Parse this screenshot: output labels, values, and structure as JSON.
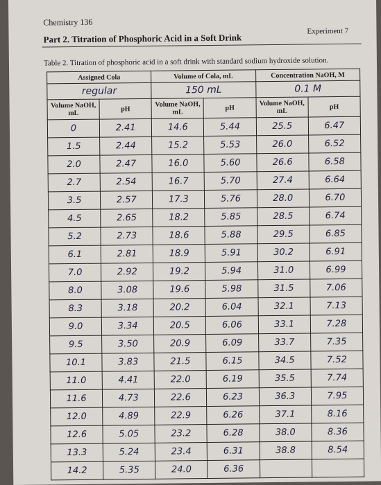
{
  "header": {
    "course": "Chemistry 136",
    "experiment": "Experiment 7",
    "title": "Part 2. Titration of Phosphoric Acid in a Soft Drink"
  },
  "table": {
    "caption": "Table 2. Titration of phosphoric acid in a soft drink with standard sodium hydroxide solution.",
    "headers": [
      "Assigned Cola",
      "Volume of Cola, mL",
      "Concentration NaOH, M"
    ],
    "entries": [
      "regular",
      "150 mL",
      "0.1 M"
    ],
    "subheaders": [
      "Volume NaOH, mL",
      "pH",
      "Volume NaOH, mL",
      "pH",
      "Volume NaOH, mL",
      "pH"
    ],
    "rows": [
      [
        "0",
        "2.41",
        "14.6",
        "5.44",
        "25.5",
        "6.47"
      ],
      [
        "1.5",
        "2.44",
        "15.2",
        "5.53",
        "26.0",
        "6.52"
      ],
      [
        "2.0",
        "2.47",
        "16.0",
        "5.60",
        "26.6",
        "6.58"
      ],
      [
        "2.7",
        "2.54",
        "16.7",
        "5.70",
        "27.4",
        "6.64"
      ],
      [
        "3.5",
        "2.57",
        "17.3",
        "5.76",
        "28.0",
        "6.70"
      ],
      [
        "4.5",
        "2.65",
        "18.2",
        "5.85",
        "28.5",
        "6.74"
      ],
      [
        "5.2",
        "2.73",
        "18.6",
        "5.88",
        "29.5",
        "6.85"
      ],
      [
        "6.1",
        "2.81",
        "18.9",
        "5.91",
        "30.2",
        "6.91"
      ],
      [
        "7.0",
        "2.92",
        "19.2",
        "5.94",
        "31.0",
        "6.99"
      ],
      [
        "8.0",
        "3.08",
        "19.6",
        "5.98",
        "31.5",
        "7.06"
      ],
      [
        "8.3",
        "3.18",
        "20.2",
        "6.04",
        "32.1",
        "7.13"
      ],
      [
        "9.0",
        "3.34",
        "20.5",
        "6.06",
        "33.1",
        "7.28"
      ],
      [
        "9.5",
        "3.50",
        "20.9",
        "6.09",
        "33.7",
        "7.35"
      ],
      [
        "10.1",
        "3.83",
        "21.5",
        "6.15",
        "34.5",
        "7.52"
      ],
      [
        "11.0",
        "4.41",
        "22.0",
        "6.19",
        "35.5",
        "7.74"
      ],
      [
        "11.6",
        "4.73",
        "22.6",
        "6.23",
        "36.3",
        "7.95"
      ],
      [
        "12.0",
        "4.89",
        "22.9",
        "6.26",
        "37.1",
        "8.16"
      ],
      [
        "12.6",
        "5.05",
        "23.2",
        "6.28",
        "38.0",
        "8.36"
      ],
      [
        "13.3",
        "5.24",
        "23.4",
        "6.31",
        "38.8",
        "8.54"
      ],
      [
        "14.2",
        "5.35",
        "24.0",
        "6.36"
      ]
    ]
  }
}
